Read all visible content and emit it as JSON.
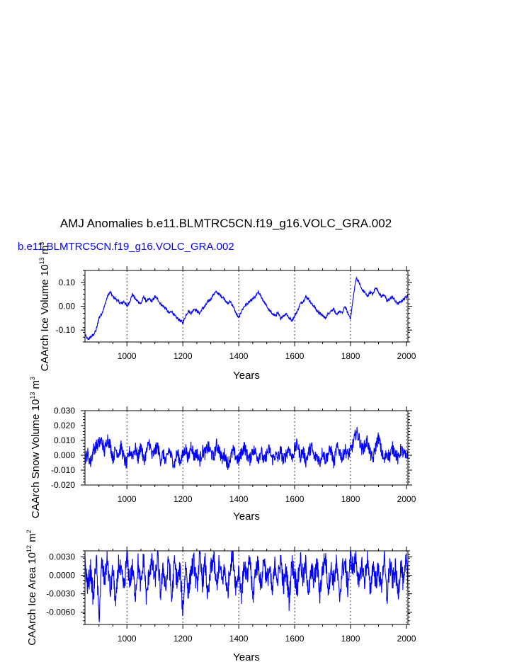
{
  "title": "AMJ Anomalies b.e11.BLMTRC5CN.f19_g16.VOLC_GRA.002",
  "subtitle": "b.e11.BLMTRC5CN.f19_g16.VOLC_GRA.002",
  "colors": {
    "series": "#0000ff",
    "axis": "#000000",
    "subtitle": "#0000ff"
  },
  "chart_data": [
    {
      "type": "line",
      "xlabel": "Years",
      "ylabel": {
        "main": "CAArch Ice Volume 10",
        "exp": "13",
        "unit": " m",
        "unit_exp": "3"
      },
      "xlim": [
        850,
        2005
      ],
      "ylim": [
        -0.15,
        0.15
      ],
      "xticks": [
        1000,
        1200,
        1400,
        1600,
        1800,
        2000
      ],
      "xtick_labels": [
        "1000",
        "1200",
        "1400",
        "1600",
        "1800",
        "2000"
      ],
      "yticks": [
        -0.1,
        0.0,
        0.1
      ],
      "ytick_labels": [
        "-0.10",
        "0.00",
        "0.10"
      ],
      "vertical_reference_lines": [
        1000,
        1200,
        1400,
        1600,
        1800,
        2000
      ],
      "series": [
        {
          "x": [
            850,
            860,
            870,
            880,
            890,
            900,
            910,
            920,
            930,
            940,
            950,
            960,
            970,
            980,
            990,
            1000,
            1010,
            1020,
            1030,
            1040,
            1050,
            1060,
            1070,
            1080,
            1090,
            1100,
            1110,
            1120,
            1130,
            1140,
            1150,
            1160,
            1170,
            1180,
            1190,
            1200,
            1210,
            1220,
            1230,
            1240,
            1250,
            1260,
            1270,
            1280,
            1290,
            1300,
            1310,
            1320,
            1330,
            1340,
            1350,
            1360,
            1370,
            1380,
            1390,
            1400,
            1410,
            1420,
            1430,
            1440,
            1450,
            1460,
            1470,
            1480,
            1490,
            1500,
            1510,
            1520,
            1530,
            1540,
            1550,
            1560,
            1570,
            1580,
            1590,
            1600,
            1610,
            1620,
            1630,
            1640,
            1650,
            1660,
            1670,
            1680,
            1690,
            1700,
            1710,
            1720,
            1730,
            1740,
            1750,
            1760,
            1770,
            1780,
            1790,
            1800,
            1810,
            1820,
            1830,
            1840,
            1850,
            1860,
            1870,
            1880,
            1890,
            1900,
            1910,
            1920,
            1930,
            1940,
            1950,
            1960,
            1970,
            1980,
            1990,
            2000,
            2005
          ],
          "y": [
            -0.12,
            -0.14,
            -0.13,
            -0.12,
            -0.1,
            -0.05,
            -0.03,
            0.0,
            0.04,
            0.06,
            0.04,
            0.03,
            0.02,
            0.01,
            0.02,
            0.0,
            0.02,
            0.05,
            0.03,
            0.02,
            0.01,
            0.04,
            0.02,
            0.03,
            0.02,
            0.04,
            0.03,
            0.01,
            0.0,
            -0.01,
            -0.03,
            -0.02,
            -0.04,
            -0.05,
            -0.06,
            -0.07,
            -0.04,
            -0.02,
            -0.03,
            -0.01,
            -0.02,
            -0.03,
            -0.01,
            0.0,
            0.02,
            0.03,
            0.05,
            0.06,
            0.05,
            0.04,
            0.03,
            0.01,
            0.02,
            0.0,
            -0.03,
            -0.05,
            -0.02,
            0.0,
            0.01,
            0.02,
            0.03,
            0.04,
            0.06,
            0.04,
            0.02,
            0.0,
            -0.02,
            -0.03,
            -0.04,
            -0.03,
            -0.05,
            -0.04,
            -0.03,
            -0.05,
            -0.06,
            -0.04,
            -0.02,
            0.01,
            0.02,
            0.04,
            0.03,
            0.01,
            0.0,
            -0.02,
            -0.03,
            -0.04,
            -0.05,
            -0.03,
            -0.02,
            -0.01,
            -0.04,
            -0.02,
            -0.03,
            0.0,
            -0.03,
            -0.05,
            0.04,
            0.12,
            0.1,
            0.07,
            0.06,
            0.04,
            0.06,
            0.05,
            0.08,
            0.06,
            0.04,
            0.05,
            0.02,
            0.03,
            0.04,
            0.02,
            0.01,
            0.02,
            0.03,
            0.04,
            0.05
          ]
        }
      ]
    },
    {
      "type": "line",
      "xlabel": "Years",
      "ylabel": {
        "main": "CAArch Snow Volume 10",
        "exp": "13",
        "unit": " m",
        "unit_exp": "3"
      },
      "xlim": [
        850,
        2005
      ],
      "ylim": [
        -0.02,
        0.03
      ],
      "xticks": [
        1000,
        1200,
        1400,
        1600,
        1800,
        2000
      ],
      "xtick_labels": [
        "1000",
        "1200",
        "1400",
        "1600",
        "1800",
        "2000"
      ],
      "yticks": [
        -0.02,
        -0.01,
        0.0,
        0.01,
        0.02,
        0.03
      ],
      "ytick_labels": [
        "-0.020",
        "-0.010",
        "0.000",
        "0.010",
        "0.020",
        "0.030"
      ],
      "vertical_reference_lines": [
        1000,
        1200,
        1400,
        1600,
        1800,
        2000
      ],
      "series": [
        {
          "x": [
            850,
            860,
            870,
            880,
            890,
            900,
            910,
            920,
            930,
            940,
            950,
            960,
            970,
            980,
            990,
            1000,
            1010,
            1020,
            1030,
            1040,
            1050,
            1060,
            1070,
            1080,
            1090,
            1100,
            1110,
            1120,
            1130,
            1140,
            1150,
            1160,
            1170,
            1180,
            1190,
            1200,
            1210,
            1220,
            1230,
            1240,
            1250,
            1260,
            1270,
            1280,
            1290,
            1300,
            1310,
            1320,
            1330,
            1340,
            1350,
            1360,
            1370,
            1380,
            1390,
            1400,
            1410,
            1420,
            1430,
            1440,
            1450,
            1460,
            1470,
            1480,
            1490,
            1500,
            1510,
            1520,
            1530,
            1540,
            1550,
            1560,
            1570,
            1580,
            1590,
            1600,
            1610,
            1620,
            1630,
            1640,
            1650,
            1660,
            1670,
            1680,
            1690,
            1700,
            1710,
            1720,
            1730,
            1740,
            1750,
            1760,
            1770,
            1780,
            1790,
            1800,
            1810,
            1820,
            1830,
            1840,
            1850,
            1860,
            1870,
            1880,
            1890,
            1900,
            1910,
            1920,
            1930,
            1940,
            1950,
            1960,
            1970,
            1980,
            1990,
            2000,
            2005
          ],
          "y": [
            -0.002,
            0.001,
            -0.005,
            0.004,
            0.006,
            0.008,
            0.01,
            0.002,
            0.012,
            0.007,
            -0.002,
            0.004,
            0.001,
            0.006,
            -0.003,
            -0.006,
            0.003,
            0.0,
            0.005,
            -0.002,
            0.007,
            -0.004,
            0.002,
            0.009,
            -0.001,
            0.003,
            0.006,
            -0.003,
            0.001,
            -0.005,
            0.004,
            -0.002,
            -0.006,
            0.002,
            -0.004,
            0.0,
            0.005,
            -0.003,
            0.008,
            -0.001,
            0.002,
            -0.004,
            0.003,
            0.001,
            0.006,
            0.002,
            -0.002,
            0.007,
            0.004,
            -0.003,
            0.001,
            -0.006,
            -0.002,
            0.003,
            -0.001,
            -0.004,
            0.002,
            0.006,
            0.0,
            -0.003,
            0.004,
            0.002,
            -0.002,
            0.003,
            -0.005,
            0.001,
            0.004,
            -0.003,
            0.0,
            -0.002,
            0.003,
            -0.004,
            0.001,
            0.005,
            -0.002,
            0.004,
            0.008,
            -0.001,
            0.003,
            -0.004,
            0.002,
            0.006,
            -0.002,
            0.0,
            -0.005,
            0.003,
            -0.003,
            0.001,
            0.004,
            -0.006,
            0.005,
            0.003,
            -0.002,
            0.004,
            0.0,
            0.003,
            0.008,
            0.016,
            0.012,
            0.004,
            0.006,
            0.01,
            0.001,
            -0.003,
            0.006,
            0.012,
            0.003,
            -0.004,
            0.002,
            -0.001,
            0.005,
            0.002,
            -0.003,
            0.004,
            0.001,
            -0.002,
            0.003
          ]
        }
      ]
    },
    {
      "type": "line",
      "xlabel": "Years",
      "ylabel": {
        "main": "CAArch Ice Area 10",
        "exp": "12",
        "unit": " m",
        "unit_exp": "2"
      },
      "xlim": [
        850,
        2005
      ],
      "ylim": [
        -0.008,
        0.004
      ],
      "xticks": [
        1000,
        1200,
        1400,
        1600,
        1800,
        2000
      ],
      "xtick_labels": [
        "1000",
        "1200",
        "1400",
        "1600",
        "1800",
        "2000"
      ],
      "yticks": [
        -0.006,
        -0.003,
        0.0,
        0.003
      ],
      "ytick_labels": [
        "-0.0060",
        "-0.0030",
        "0.0000",
        "0.0030"
      ],
      "vertical_reference_lines": [
        1000,
        1200,
        1400,
        1600,
        1800,
        2000
      ],
      "series": [
        {
          "x": [
            850,
            860,
            870,
            880,
            890,
            900,
            910,
            920,
            930,
            940,
            950,
            960,
            970,
            980,
            990,
            1000,
            1010,
            1020,
            1030,
            1040,
            1050,
            1060,
            1070,
            1080,
            1090,
            1100,
            1110,
            1120,
            1130,
            1140,
            1150,
            1160,
            1170,
            1180,
            1190,
            1200,
            1210,
            1220,
            1230,
            1240,
            1250,
            1260,
            1270,
            1280,
            1290,
            1300,
            1310,
            1320,
            1330,
            1340,
            1350,
            1360,
            1370,
            1380,
            1390,
            1400,
            1410,
            1420,
            1430,
            1440,
            1450,
            1460,
            1470,
            1480,
            1490,
            1500,
            1510,
            1520,
            1530,
            1540,
            1550,
            1560,
            1570,
            1580,
            1590,
            1600,
            1610,
            1620,
            1630,
            1640,
            1650,
            1660,
            1670,
            1680,
            1690,
            1700,
            1710,
            1720,
            1730,
            1740,
            1750,
            1760,
            1770,
            1780,
            1790,
            1800,
            1810,
            1820,
            1830,
            1840,
            1850,
            1860,
            1870,
            1880,
            1890,
            1900,
            1910,
            1920,
            1930,
            1940,
            1950,
            1960,
            1970,
            1980,
            1990,
            2000,
            2005
          ],
          "y": [
            0.002,
            -0.002,
            0.001,
            -0.004,
            0.003,
            -0.007,
            0.002,
            -0.001,
            0.003,
            -0.003,
            0.001,
            -0.005,
            0.002,
            0.0,
            -0.002,
            0.003,
            -0.001,
            0.001,
            -0.003,
            0.002,
            -0.002,
            0.003,
            -0.004,
            0.001,
            0.002,
            -0.001,
            0.003,
            -0.003,
            0.001,
            -0.002,
            0.003,
            -0.004,
            0.002,
            -0.001,
            0.001,
            -0.006,
            0.002,
            -0.003,
            0.001,
            0.002,
            -0.002,
            0.003,
            -0.001,
            0.002,
            -0.004,
            0.001,
            0.003,
            -0.002,
            0.002,
            -0.001,
            0.001,
            -0.003,
            0.002,
            0.003,
            -0.002,
            0.001,
            -0.003,
            0.002,
            -0.001,
            0.003,
            -0.004,
            0.001,
            0.002,
            -0.002,
            0.003,
            -0.001,
            0.001,
            -0.003,
            0.002,
            -0.001,
            0.003,
            -0.002,
            0.001,
            -0.004,
            0.002,
            0.0,
            -0.002,
            0.003,
            -0.001,
            0.002,
            -0.003,
            0.001,
            -0.001,
            0.002,
            -0.003,
            0.001,
            0.003,
            -0.002,
            0.001,
            -0.001,
            0.002,
            -0.004,
            0.001,
            0.002,
            -0.002,
            0.003,
            0.001,
            0.003,
            -0.002,
            0.002,
            -0.001,
            0.003,
            -0.003,
            0.002,
            -0.001,
            0.001,
            -0.002,
            0.003,
            -0.004,
            0.002,
            -0.001,
            0.001,
            -0.003,
            0.002,
            -0.002,
            0.003,
            -0.001
          ]
        }
      ]
    }
  ]
}
